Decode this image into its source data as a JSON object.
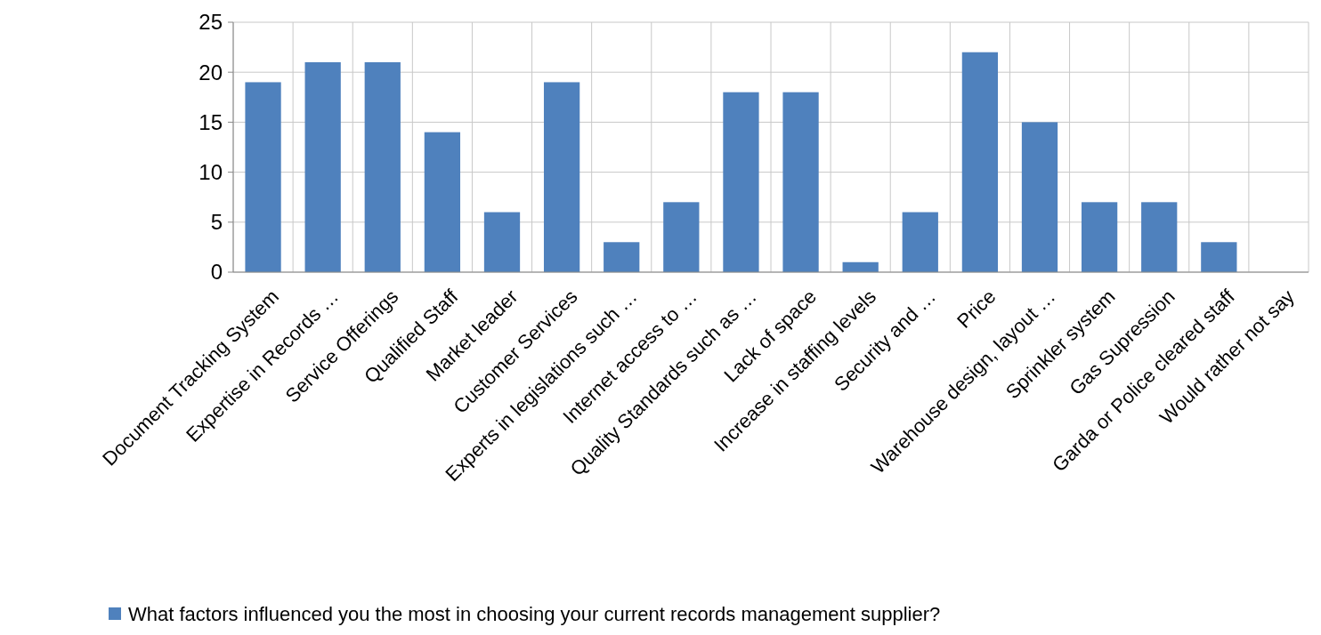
{
  "chart_data": {
    "type": "bar",
    "categories": [
      "Document Tracking System",
      "Expertise in Records …",
      "Service Offerings",
      "Qualified Staff",
      "Market leader",
      "Customer Services",
      "Experts in legislations such …",
      "Internet access to …",
      "Quality Standards such as …",
      "Lack of space",
      "Increase in staffing levels",
      "Security  and …",
      "Price",
      "Warehouse design, layout …",
      "Sprinkler system",
      "Gas Supression",
      "Garda or Police cleared staff",
      "Would rather not say"
    ],
    "series": [
      {
        "name": "What factors influenced you the most in choosing your current records management supplier?",
        "color": "#4f81bd",
        "values": [
          19,
          21,
          21,
          14,
          6,
          19,
          3,
          7,
          18,
          18,
          1,
          6,
          22,
          15,
          7,
          7,
          3,
          0
        ]
      }
    ],
    "ylim": [
      0,
      25
    ],
    "yticks": [
      0,
      5,
      10,
      15,
      20,
      25
    ],
    "grid": true,
    "legend": "bottom"
  }
}
